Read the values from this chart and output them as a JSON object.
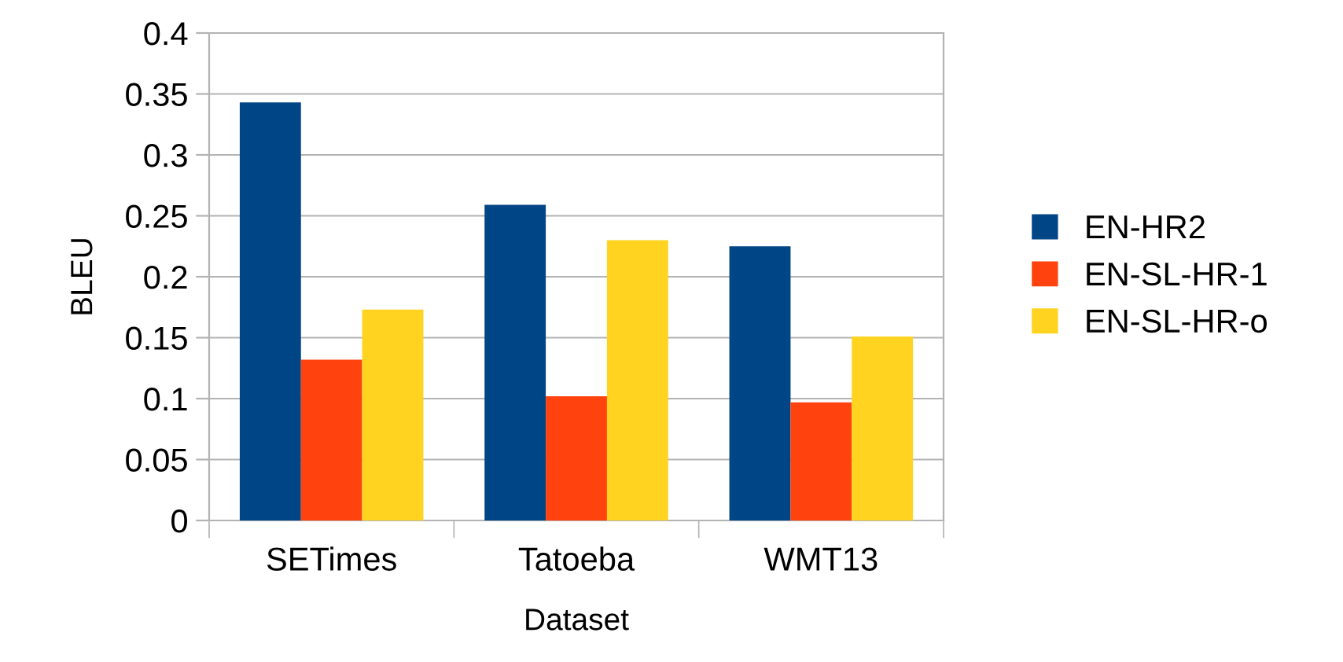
{
  "chart_data": {
    "type": "bar",
    "xlabel": "Dataset",
    "ylabel": "BLEU",
    "categories": [
      "SETimes",
      "Tatoeba",
      "WMT13"
    ],
    "series": [
      {
        "name": "EN-HR2",
        "color": "#004586",
        "values": [
          0.343,
          0.259,
          0.225
        ]
      },
      {
        "name": "EN-SL-HR-1",
        "color": "#ff420e",
        "values": [
          0.132,
          0.102,
          0.097
        ]
      },
      {
        "name": "EN-SL-HR-o",
        "color": "#ffd320",
        "values": [
          0.173,
          0.23,
          0.151
        ]
      }
    ],
    "ylim": [
      0,
      0.4
    ],
    "yticks": [
      0,
      0.05,
      0.1,
      0.15,
      0.2,
      0.25,
      0.3,
      0.35,
      0.4
    ],
    "grid": "y",
    "legend": "right"
  }
}
